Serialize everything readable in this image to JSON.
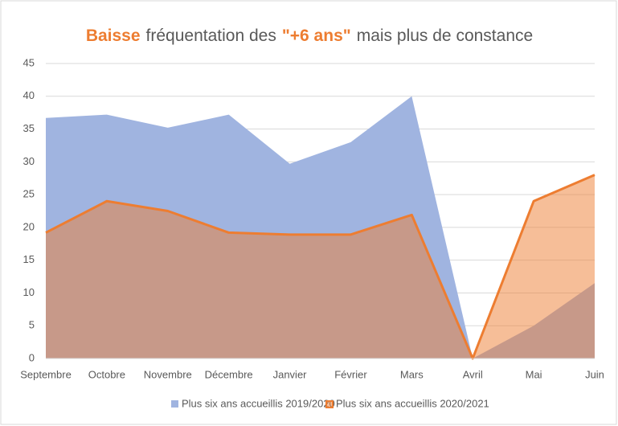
{
  "chart_data": {
    "type": "area",
    "title": [
      {
        "text": "Baisse",
        "color": "#ed7d31",
        "bold": true
      },
      {
        "text": "fréquentation des",
        "color": "#595959",
        "bold": false
      },
      {
        "text": "\"+6 ans\"",
        "color": "#ed7d31",
        "bold": true
      },
      {
        "text": "mais plus de constance",
        "color": "#595959",
        "bold": false
      }
    ],
    "categories": [
      "Septembre",
      "Octobre",
      "Novembre",
      "Décembre",
      "Janvier",
      "Février",
      "Mars",
      "Avril",
      "Mai",
      "Juin"
    ],
    "series": [
      {
        "name": "Plus six ans accueillis 2019/2020",
        "color": "#a0b4e0",
        "values": [
          36.7,
          37.2,
          35.2,
          37.2,
          29.7,
          33,
          40,
          0,
          5,
          11.5
        ]
      },
      {
        "name": "Plus six ans accueillis 2020/2021",
        "color": "#ed7d31",
        "values": [
          19.2,
          24,
          22.5,
          19.2,
          18.9,
          18.9,
          21.9,
          0,
          24,
          28
        ]
      }
    ],
    "ylim": [
      0,
      45
    ],
    "yticks": [
      0,
      5,
      10,
      15,
      20,
      25,
      30,
      35,
      40,
      45
    ],
    "grid": true,
    "legend": "bottom"
  }
}
